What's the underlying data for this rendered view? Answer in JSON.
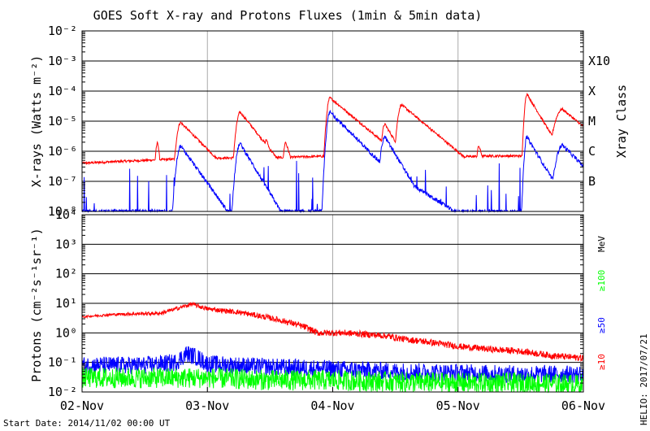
{
  "chart_data": [
    {
      "type": "line",
      "title": "GOES Soft X-ray and Protons Fluxes   (1min & 5min data)",
      "ylabel": "X-rays (Watts m⁻²)",
      "yscale": "log",
      "ylim": [
        1e-08,
        0.01
      ],
      "yticks": [
        "10⁻²",
        "10⁻³",
        "10⁻⁴",
        "10⁻⁵",
        "10⁻⁶",
        "10⁻⁷",
        "10⁻⁸"
      ],
      "right_axis_label": "Xray Class",
      "classes": [
        {
          "label": "X10",
          "flux": 0.001
        },
        {
          "label": "X",
          "flux": 0.0001
        },
        {
          "label": "M",
          "flux": 1e-05
        },
        {
          "label": "C",
          "flux": 1e-06
        },
        {
          "label": "B",
          "flux": 1e-07
        }
      ],
      "grid": true,
      "series": [
        {
          "color": "#ff0000",
          "baseline": [
            [
              0,
              4e-07
            ],
            [
              6,
              4.5e-07
            ],
            [
              12,
              5e-07
            ],
            [
              18,
              5.5e-07
            ],
            [
              24,
              6e-07
            ],
            [
              30,
              6e-07
            ],
            [
              36,
              6e-07
            ],
            [
              42,
              6.5e-07
            ],
            [
              48,
              7e-07
            ],
            [
              54,
              7e-07
            ],
            [
              60,
              7e-07
            ],
            [
              66,
              6.5e-07
            ],
            [
              72,
              6.5e-07
            ],
            [
              78,
              7e-07
            ],
            [
              84,
              7e-07
            ],
            [
              90,
              7e-07
            ],
            [
              96,
              8e-07
            ]
          ],
          "flares": [
            {
              "t": 14.5,
              "peak": 2e-06,
              "w": 0.3,
              "d": 0.3
            },
            {
              "t": 18.9,
              "peak": 9e-06,
              "w": 0.5,
              "d": 2.5
            },
            {
              "t": 30.3,
              "peak": 2e-05,
              "w": 0.5,
              "d": 2.0
            },
            {
              "t": 35.3,
              "peak": 2.5e-06,
              "w": 0.3,
              "d": 0.8
            },
            {
              "t": 39.0,
              "peak": 2e-06,
              "w": 0.3,
              "d": 0.8
            },
            {
              "t": 47.5,
              "peak": 6e-05,
              "w": 0.4,
              "d": 3.0
            },
            {
              "t": 49.6,
              "peak": 5e-06,
              "w": 0.4,
              "d": 1.5
            },
            {
              "t": 55.0,
              "peak": 2.5e-06,
              "w": 0.3,
              "d": 1.0
            },
            {
              "t": 58.0,
              "peak": 8e-06,
              "w": 0.4,
              "d": 1.5
            },
            {
              "t": 61.2,
              "peak": 3.5e-05,
              "w": 0.5,
              "d": 3.0
            },
            {
              "t": 76.0,
              "peak": 1.5e-06,
              "w": 0.3,
              "d": 0.8
            },
            {
              "t": 85.2,
              "peak": 8e-05,
              "w": 0.3,
              "d": 1.5
            },
            {
              "t": 92.0,
              "peak": 2.5e-05,
              "w": 1.0,
              "d": 3.0
            }
          ]
        },
        {
          "color": "#0000ff",
          "baseline": [
            [
              0,
              1e-08
            ],
            [
              96,
              1e-08
            ]
          ],
          "flares": [
            {
              "t": 18.9,
              "peak": 1.5e-06,
              "w": 0.5,
              "d": 1.8
            },
            {
              "t": 30.3,
              "peak": 1.8e-06,
              "w": 0.5,
              "d": 1.5
            },
            {
              "t": 47.5,
              "peak": 2e-05,
              "w": 0.4,
              "d": 2.5
            },
            {
              "t": 49.6,
              "peak": 4e-07,
              "w": 0.4,
              "d": 1.0
            },
            {
              "t": 52.0,
              "peak": 5e-08,
              "w": 1.5,
              "d": 2.0
            },
            {
              "t": 58.0,
              "peak": 3e-06,
              "w": 0.5,
              "d": 1.5
            },
            {
              "t": 60.5,
              "peak": 1.5e-07,
              "w": 1.5,
              "d": 4.0
            },
            {
              "t": 85.2,
              "peak": 3e-06,
              "w": 0.3,
              "d": 1.5
            },
            {
              "t": 86.8,
              "peak": 8e-08,
              "w": 1.0,
              "d": 2.0
            },
            {
              "t": 92.0,
              "peak": 1.6e-06,
              "w": 0.8,
              "d": 2.5
            }
          ]
        }
      ]
    },
    {
      "type": "line",
      "ylabel": "Protons (cm⁻²s⁻¹sr⁻¹)",
      "yscale": "log",
      "ylim": [
        0.01,
        10000
      ],
      "yticks": [
        "10⁴",
        "10³",
        "10²",
        "10¹",
        "10⁰",
        "10⁻¹",
        "10⁻²"
      ],
      "unit_label": "MeV",
      "threshold": 10,
      "grid": true,
      "series": [
        {
          "name": "≥10",
          "color": "#ff0000",
          "points": [
            [
              0,
              3.5
            ],
            [
              6,
              4.2
            ],
            [
              12,
              4.5
            ],
            [
              15,
              4.6
            ],
            [
              18,
              6.5
            ],
            [
              21,
              9.5
            ],
            [
              24,
              6.5
            ],
            [
              30,
              5.0
            ],
            [
              36,
              3.2
            ],
            [
              40,
              2.2
            ],
            [
              43,
              1.5
            ],
            [
              45,
              1.0
            ],
            [
              50,
              1.0
            ],
            [
              54,
              0.9
            ],
            [
              58,
              0.8
            ],
            [
              62,
              0.6
            ],
            [
              66,
              0.5
            ],
            [
              72,
              0.35
            ],
            [
              78,
              0.28
            ],
            [
              84,
              0.24
            ],
            [
              90,
              0.17
            ],
            [
              96,
              0.14
            ]
          ]
        },
        {
          "name": "≥50",
          "color": "#0000ff",
          "points": [
            [
              0,
              0.08
            ],
            [
              12,
              0.08
            ],
            [
              18,
              0.1
            ],
            [
              20,
              0.2
            ],
            [
              22,
              0.15
            ],
            [
              24,
              0.09
            ],
            [
              36,
              0.07
            ],
            [
              48,
              0.06
            ],
            [
              60,
              0.05
            ],
            [
              72,
              0.045
            ],
            [
              84,
              0.04
            ],
            [
              96,
              0.04
            ]
          ]
        },
        {
          "name": "≥100",
          "color": "#00ff00",
          "points": [
            [
              0,
              0.03
            ],
            [
              24,
              0.03
            ],
            [
              36,
              0.025
            ],
            [
              48,
              0.025
            ],
            [
              60,
              0.022
            ],
            [
              72,
              0.02
            ],
            [
              84,
              0.02
            ],
            [
              96,
              0.018
            ]
          ]
        }
      ]
    }
  ],
  "x_axis": {
    "ticks": [
      {
        "label": "02-Nov",
        "hours": 0
      },
      {
        "label": "03-Nov",
        "hours": 24
      },
      {
        "label": "04-Nov",
        "hours": 48
      },
      {
        "label": "05-Nov",
        "hours": 72
      },
      {
        "label": "06-Nov",
        "hours": 96
      }
    ]
  },
  "footer": {
    "start_date": "Start Date: 2014/11/02 00:00 UT",
    "credit": "HELIO: 2017/07/21"
  }
}
